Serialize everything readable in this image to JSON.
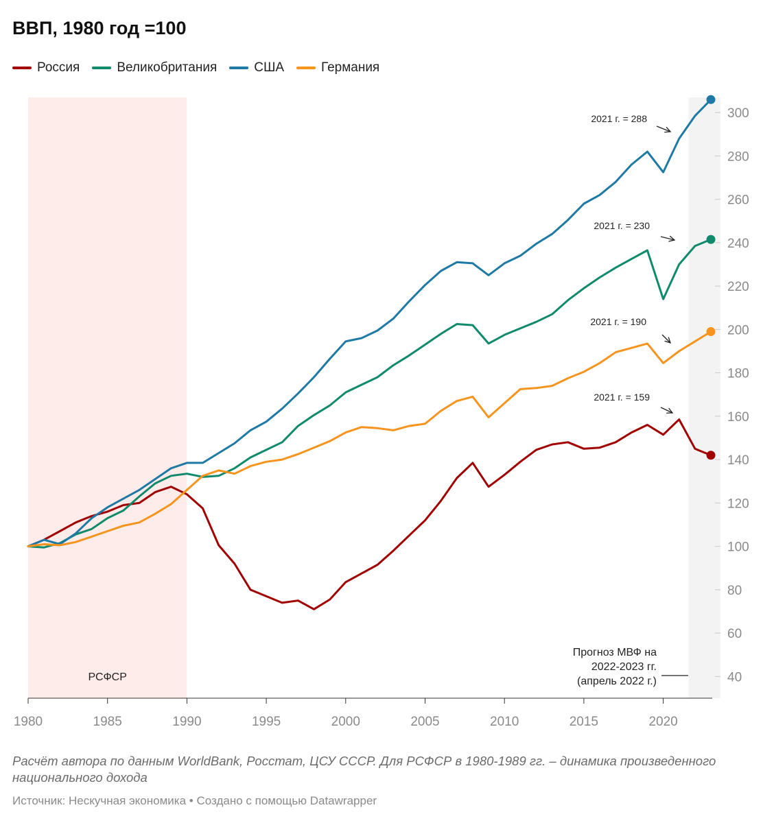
{
  "header": {
    "title": "ВВП, 1980 год =100"
  },
  "chart_data": {
    "type": "line",
    "title": "ВВП, 1980 год =100",
    "xlabel": "",
    "ylabel": "",
    "xlim": [
      1980,
      2023
    ],
    "ylim": [
      30,
      307
    ],
    "x_ticks": [
      1980,
      1985,
      1990,
      1995,
      2000,
      2005,
      2010,
      2015,
      2020
    ],
    "y_ticks": [
      40,
      60,
      80,
      100,
      120,
      140,
      160,
      180,
      200,
      220,
      240,
      260,
      280,
      300
    ],
    "legend_position": "top-left",
    "x": [
      1980,
      1981,
      1982,
      1983,
      1984,
      1985,
      1986,
      1987,
      1988,
      1989,
      1990,
      1991,
      1992,
      1993,
      1994,
      1995,
      1996,
      1997,
      1998,
      1999,
      2000,
      2001,
      2002,
      2003,
      2004,
      2005,
      2006,
      2007,
      2008,
      2009,
      2010,
      2011,
      2012,
      2013,
      2014,
      2015,
      2016,
      2017,
      2018,
      2019,
      2020,
      2021,
      2022,
      2023
    ],
    "series": [
      {
        "name": "Россия",
        "color": "#a00000",
        "values": [
          100,
          103,
          107,
          111,
          114,
          116,
          119,
          120,
          125,
          127.5,
          124,
          117.5,
          100.5,
          92,
          80,
          77,
          74,
          75,
          71,
          75.5,
          83.5,
          87.5,
          91.5,
          98,
          105,
          112,
          121,
          131.5,
          138.5,
          127.5,
          133,
          139,
          144.5,
          147,
          148,
          145,
          145.5,
          148,
          152.5,
          156,
          151.5,
          158.5,
          145,
          142
        ]
      },
      {
        "name": "Великобритания",
        "color": "#0f8a6c",
        "values": [
          100,
          99.5,
          101.5,
          105.5,
          108,
          113,
          116.5,
          123,
          129,
          132.5,
          133.5,
          132,
          132.5,
          136,
          141,
          144.5,
          148,
          155.5,
          160.5,
          165,
          171,
          174.5,
          178,
          183.5,
          188,
          193,
          198,
          202.5,
          202,
          193.5,
          197.5,
          200.5,
          203.5,
          207,
          213.5,
          219,
          224,
          228.5,
          232.5,
          236.5,
          214,
          230,
          238.5,
          241.5
        ]
      },
      {
        "name": "США",
        "color": "#1e79a5",
        "values": [
          100,
          103,
          101,
          106,
          113,
          118,
          122,
          126,
          131,
          136,
          138.5,
          138.5,
          143,
          147.5,
          153.5,
          157.5,
          163.5,
          170.5,
          178,
          186.5,
          194.5,
          196,
          199.5,
          205,
          213,
          220.5,
          227,
          231,
          230.5,
          225,
          230.5,
          234,
          239.5,
          244,
          250.5,
          258,
          262,
          268,
          276,
          282,
          272.5,
          288,
          298.5,
          306
        ]
      },
      {
        "name": "Германия",
        "color": "#f7941d",
        "values": [
          100,
          101,
          100.5,
          102,
          104.5,
          107,
          109.5,
          111,
          115,
          119.5,
          126,
          132.5,
          135,
          133.5,
          137,
          139,
          140,
          142.5,
          145.5,
          148.5,
          152.5,
          155,
          154.5,
          153.5,
          155.5,
          156.5,
          162.5,
          167,
          169,
          159.5,
          166,
          172.5,
          173,
          174,
          177.5,
          180.5,
          184.5,
          189.5,
          191.5,
          193.5,
          184.5,
          190,
          194.5,
          199
        ]
      }
    ],
    "annotations": [
      {
        "text": "2021 г. = 288",
        "year": 2021,
        "series": "США"
      },
      {
        "text": "2021 г. = 230",
        "year": 2021,
        "series": "Великобритания"
      },
      {
        "text": "2021 г. = 190",
        "year": 2021,
        "series": "Германия"
      },
      {
        "text": "2021 г. = 159",
        "year": 2021,
        "series": "Россия"
      }
    ],
    "highlight_rsfsr": {
      "label": "РСФСР",
      "from": 1980,
      "to": 1990
    },
    "forecast": {
      "lines": [
        "Прогноз МВФ на",
        "2022-2023 гг.",
        "(апрель 2022 г.)"
      ],
      "from": 2021.6,
      "to": 2023.6
    }
  },
  "footer": {
    "notes": "Расчёт автора по данным WorldBank, Росстат, ЦСУ СССР.  Для РСФСР в 1980-1989 гг. – динамика произведенного национального дохода",
    "source_label": "Источник: Нескучная экономика",
    "credit": "Создано с помощью Datawrapper",
    "separator": "•"
  }
}
